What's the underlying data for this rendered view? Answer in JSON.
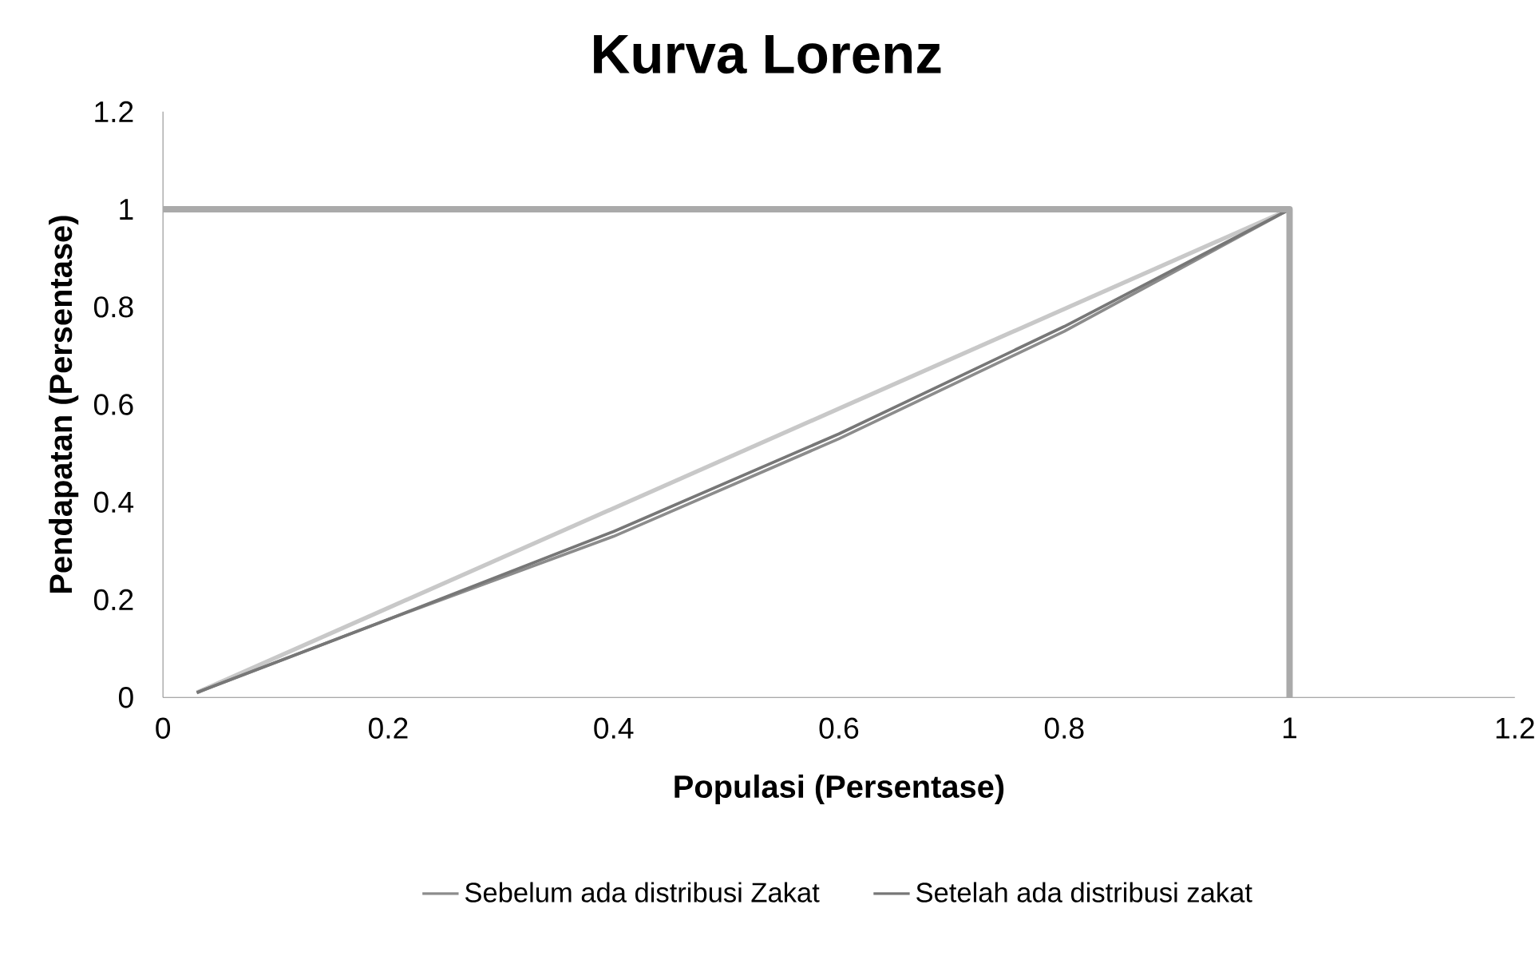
{
  "chart_data": {
    "type": "line",
    "title": "Kurva Lorenz",
    "xlabel": "Populasi (Persentase)",
    "ylabel": "Pendapatan (Persentase)",
    "xlim": [
      0,
      1.2
    ],
    "ylim": [
      0,
      1.2
    ],
    "xticks": [
      0,
      0.2,
      0.4,
      0.6,
      0.8,
      1,
      1.2
    ],
    "yticks": [
      0,
      0.2,
      0.4,
      0.6,
      0.8,
      1,
      1.2
    ],
    "grid": false,
    "legend": "bottom",
    "marker": "none",
    "line_style": "solid",
    "series": [
      {
        "color": "#c8c8c8",
        "x": [
          0.03,
          1
        ],
        "values": [
          0.01,
          1
        ]
      },
      {
        "name": "Sebelum ada distribusi Zakat",
        "color": "#8c8c8c",
        "x": [
          0.03,
          0.2,
          0.4,
          0.6,
          0.8,
          1
        ],
        "values": [
          0.01,
          0.16,
          0.33,
          0.53,
          0.75,
          1
        ]
      },
      {
        "name": "Setelah ada distribusi zakat",
        "color": "#777777",
        "x": [
          0.03,
          0.2,
          0.4,
          0.6,
          0.8,
          1
        ],
        "values": [
          0.01,
          0.16,
          0.34,
          0.54,
          0.76,
          1
        ]
      },
      {
        "color": "#aaaaaa",
        "x": [
          0,
          1,
          1
        ],
        "values": [
          1,
          1,
          0
        ]
      }
    ]
  }
}
